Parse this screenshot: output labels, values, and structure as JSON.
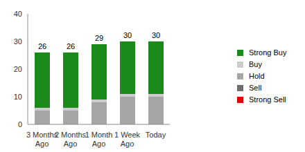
{
  "chart_data": {
    "type": "bar",
    "stacked": true,
    "categories": [
      "3 Months Ago",
      "2 Months Ago",
      "1 Month Ago",
      "1 Week Ago",
      "Today"
    ],
    "series": [
      {
        "name": "Strong Buy",
        "color": "#1a8a1a",
        "values": [
          20,
          20,
          20,
          19,
          19
        ]
      },
      {
        "name": "Buy",
        "color": "#cccccc",
        "values": [
          1,
          1,
          1,
          1,
          1
        ]
      },
      {
        "name": "Hold",
        "color": "#a6a6a6",
        "values": [
          5,
          5,
          8,
          10,
          10
        ]
      },
      {
        "name": "Sell",
        "color": "#6e6e6e",
        "values": [
          0,
          0,
          0,
          0,
          0
        ]
      },
      {
        "name": "Strong Sell",
        "color": "#e00000",
        "values": [
          0,
          0,
          0,
          0,
          0
        ]
      }
    ],
    "totals": [
      26,
      26,
      29,
      30,
      30
    ],
    "ylim": [
      0,
      40
    ],
    "yticks": [
      0,
      10,
      20,
      30,
      40
    ],
    "grid": false,
    "legend": "right"
  }
}
